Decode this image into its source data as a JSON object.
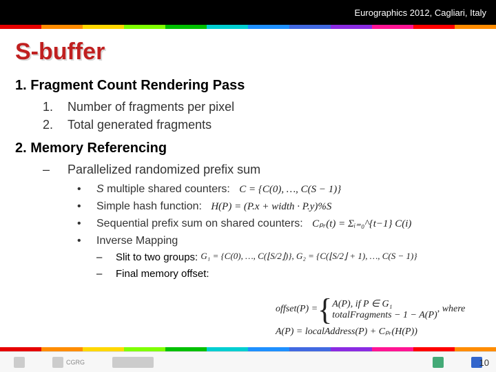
{
  "header": {
    "venue": "Eurographics 2012, Cagliari, Italy"
  },
  "rainbow_colors": [
    "#e60000",
    "#ff8c00",
    "#ffd700",
    "#7fff00",
    "#00c000",
    "#00ced1",
    "#1e90ff",
    "#4169e1",
    "#8a2be2",
    "#ff1493",
    "#ff0000",
    "#ff8c00"
  ],
  "title": "S-buffer",
  "section1": {
    "number": "1.",
    "heading": "Fragment Count Rendering Pass",
    "items": [
      {
        "n": "1.",
        "text": "Number of fragments per pixel"
      },
      {
        "n": "2.",
        "text": "Total generated fragments"
      }
    ]
  },
  "section2": {
    "number": "2.",
    "heading": "Memory Referencing",
    "dash": "–",
    "subtitle": "Parallelized randomized prefix sum",
    "bullets": [
      {
        "em": "S",
        "rest": " multiple shared counters:"
      },
      {
        "text": "Simple hash function:"
      },
      {
        "text": "Sequential prefix sum on shared counters:"
      },
      {
        "text": "Inverse Mapping"
      }
    ],
    "inner": [
      {
        "d": "–",
        "text": "Slit to two groups:"
      },
      {
        "d": "–",
        "text": "Final memory offset:"
      }
    ]
  },
  "math": {
    "c_set": "C = {C(0), …, C(S − 1)}",
    "hash": "H(P) = (P.x + width · P.y)%S",
    "prefix": "Cₚᵣ(t) = Σᵢ₌₀^{t−1} C(i)",
    "groups": "G₁ = {C(0), …, C(⌊S/2⌋)}, G₂ = {C(⌊S/2⌋ + 1), …, C(S − 1)}",
    "offset_head": "offset(P) =",
    "offset_case1": "A(P), if P ∈ G₁",
    "offset_case2": "totalFragments − 1 − A(P)",
    "where": ", where",
    "ap": "A(P) = localAddress(P) + Cₚᵣ(H(P))"
  },
  "page": "10"
}
